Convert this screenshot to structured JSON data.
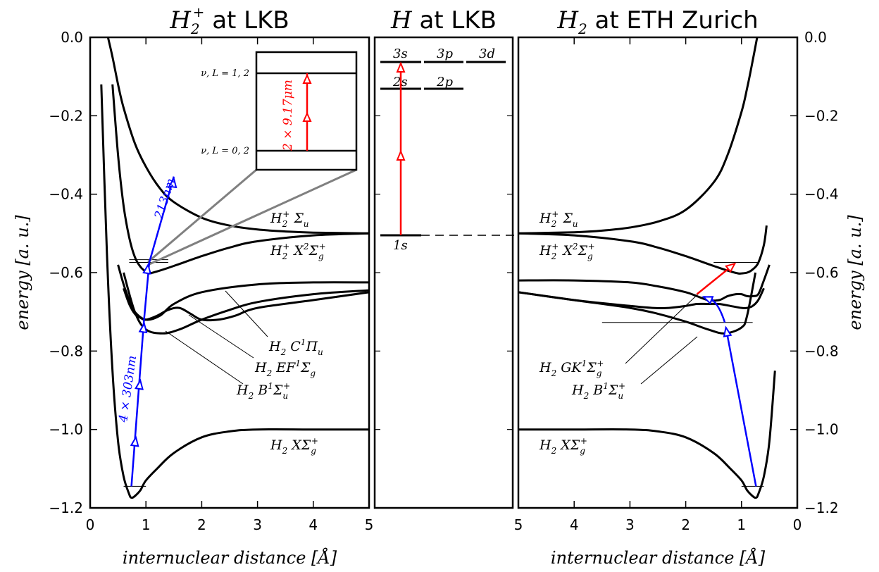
{
  "chart_data": [
    {
      "type": "line",
      "title": "H2+ at LKB",
      "xlabel": "internuclear distance [Å]",
      "ylabel": "energy [a. u.]",
      "xlim": [
        0,
        5
      ],
      "ylim": [
        -1.2,
        0.0
      ],
      "x_ticks": [
        "0",
        "1",
        "2",
        "3",
        "4",
        "5"
      ],
      "y_ticks": [
        "0.0",
        "−0.2",
        "−0.4",
        "−0.6",
        "−0.8",
        "−1.0",
        "−1.2"
      ],
      "series": [
        {
          "name": "H2+ Σu",
          "x": [
            0.32,
            0.4,
            0.5,
            0.6,
            0.8,
            1.0,
            1.25,
            1.5,
            2.0,
            2.5,
            3.0,
            3.5,
            4.0,
            5.0
          ],
          "y": [
            0.0,
            -0.05,
            -0.12,
            -0.18,
            -0.27,
            -0.33,
            -0.385,
            -0.42,
            -0.46,
            -0.48,
            -0.49,
            -0.495,
            -0.498,
            -0.5
          ]
        },
        {
          "name": "H2+ X2Σg+",
          "x": [
            0.4,
            0.5,
            0.6,
            0.7,
            0.8,
            0.9,
            1.0,
            1.06,
            1.2,
            1.5,
            2.0,
            2.5,
            3.0,
            4.0,
            5.0
          ],
          "y": [
            -0.12,
            -0.3,
            -0.43,
            -0.51,
            -0.56,
            -0.585,
            -0.598,
            -0.602,
            -0.597,
            -0.583,
            -0.558,
            -0.536,
            -0.52,
            -0.505,
            -0.5
          ]
        },
        {
          "name": "H2 C1Πu",
          "x": [
            0.5,
            0.6,
            0.7,
            0.8,
            1.0,
            1.25,
            1.5,
            2.0,
            3.0,
            4.0,
            5.0
          ],
          "y": [
            -0.58,
            -0.63,
            -0.67,
            -0.7,
            -0.72,
            -0.71,
            -0.68,
            -0.65,
            -0.63,
            -0.625,
            -0.625
          ]
        },
        {
          "name": "H2 EF1Σg",
          "x": [
            0.6,
            0.7,
            0.8,
            0.9,
            1.0,
            1.2,
            1.4,
            1.6,
            1.8,
            2.0,
            2.3,
            2.6,
            3.0,
            4.0,
            5.0
          ],
          "y": [
            -0.64,
            -0.68,
            -0.705,
            -0.715,
            -0.72,
            -0.71,
            -0.695,
            -0.69,
            -0.705,
            -0.72,
            -0.72,
            -0.71,
            -0.69,
            -0.67,
            -0.65
          ]
        },
        {
          "name": "H2 B1Σu+",
          "x": [
            0.6,
            0.8,
            1.0,
            1.3,
            1.6,
            2.0,
            2.5,
            3.0,
            4.0,
            5.0
          ],
          "y": [
            -0.6,
            -0.7,
            -0.745,
            -0.755,
            -0.745,
            -0.72,
            -0.695,
            -0.675,
            -0.655,
            -0.645
          ]
        },
        {
          "name": "H2 XΣg+",
          "x": [
            0.2,
            0.3,
            0.4,
            0.5,
            0.6,
            0.7,
            0.74,
            0.8,
            0.9,
            1.0,
            1.2,
            1.5,
            2.0,
            2.5,
            3.0,
            4.0,
            5.0
          ],
          "y": [
            -0.12,
            -0.55,
            -0.85,
            -1.03,
            -1.12,
            -1.165,
            -1.174,
            -1.17,
            -1.155,
            -1.13,
            -1.1,
            -1.06,
            -1.02,
            -1.005,
            -1.0,
            -1.0,
            -1.0
          ]
        }
      ],
      "vibrational_levels": [
        {
          "y": -1.145,
          "x": [
            0.6,
            1.0
          ]
        },
        {
          "y": -0.567,
          "x": [
            0.7,
            1.4
          ]
        },
        {
          "y": -0.574,
          "x": [
            0.7,
            1.4
          ]
        }
      ],
      "curve_labels": {
        "sigma_u": {
          "base": "H",
          "sub": "2",
          "sup": "+",
          "rest": " Σ",
          "rest_sub": "u"
        },
        "x2sigma": {
          "base": "H",
          "sub": "2",
          "sup": "+",
          "rest": " X",
          "rest_sup": "2",
          "rest2": "Σ",
          "rest2_sub": "g",
          "rest2_sup": "+"
        },
        "c1pi": {
          "base": "H",
          "sub": "2",
          "rest": " C",
          "rest_sup": "1",
          "rest2": "Π",
          "rest2_sub": "u"
        },
        "ef1sigma": {
          "base": "H",
          "sub": "2",
          "rest": " EF",
          "rest_sup": "1",
          "rest2": "Σ",
          "rest2_sub": "g"
        },
        "b1sigma": {
          "base": "H",
          "sub": "2",
          "rest": " B",
          "rest_sup": "1",
          "rest2": "Σ",
          "rest2_sub": "u",
          "rest2_sup": "+"
        },
        "xsigma": {
          "base": "H",
          "sub": "2",
          "rest": " X",
          "rest2": "Σ",
          "rest2_sub": "g",
          "rest2_sup": "+"
        }
      },
      "annotations": {
        "blue_label_upper": "213nm",
        "blue_label_lower": "4 × 303nm",
        "inset_level_upper": "ν, L = 1, 2",
        "inset_level_lower": "ν, L = 0, 2",
        "inset_red_label": "2 × 9.17μm"
      },
      "colors": {
        "curves": "#000000",
        "laser_uv": "#0000ff",
        "laser_ir": "#ff0000",
        "inset_connector": "#808080"
      }
    },
    {
      "type": "line",
      "title": "H at LKB",
      "xlim": [
        0,
        5
      ],
      "x_ticks": [
        "5"
      ],
      "levels": [
        {
          "label": "3s",
          "energy": -0.0556
        },
        {
          "label": "3p",
          "energy": -0.0556
        },
        {
          "label": "3d",
          "energy": -0.0556
        },
        {
          "label": "2s",
          "energy": -0.125
        },
        {
          "label": "2p",
          "energy": -0.125
        },
        {
          "label": "1s",
          "energy": -0.5
        }
      ],
      "transition": {
        "from": "1s",
        "to": "3s",
        "color": "#ff0000"
      }
    },
    {
      "type": "line",
      "title": "H2 at ETH Zurich",
      "xlabel": "internuclear distance [Å]",
      "ylabel": "energy [a. u.]",
      "xlim": [
        5,
        0
      ],
      "ylim": [
        -1.2,
        0.0
      ],
      "x_ticks": [
        "5",
        "4",
        "3",
        "2",
        "1",
        "0"
      ],
      "y_ticks": [
        "0.0",
        "−0.2",
        "−0.4",
        "−0.6",
        "−0.8",
        "−1.0",
        "−1.2"
      ],
      "series": [
        {
          "name": "H2+ Σu",
          "x": [
            0.72,
            0.8,
            0.9,
            1.0,
            1.25,
            1.5,
            2.0,
            2.5,
            3.0,
            3.5,
            4.0,
            5.0
          ],
          "y": [
            0.0,
            -0.06,
            -0.13,
            -0.19,
            -0.3,
            -0.37,
            -0.44,
            -0.47,
            -0.485,
            -0.493,
            -0.497,
            -0.5
          ]
        },
        {
          "name": "H2+ X2Σg+",
          "x": [
            0.55,
            0.6,
            0.7,
            0.8,
            0.9,
            1.0,
            1.06,
            1.2,
            1.5,
            2.0,
            2.5,
            3.0,
            4.0,
            5.0
          ],
          "y": [
            -0.48,
            -0.53,
            -0.575,
            -0.592,
            -0.6,
            -0.602,
            -0.602,
            -0.597,
            -0.583,
            -0.558,
            -0.536,
            -0.52,
            -0.505,
            -0.5
          ]
        },
        {
          "name": "H2 GK1Σg+",
          "x": [
            0.5,
            0.6,
            0.7,
            0.8,
            0.9,
            1.0,
            1.1,
            1.25,
            1.4,
            1.6,
            1.8,
            2.0,
            2.5,
            3.0,
            4.0,
            5.0
          ],
          "y": [
            -0.58,
            -0.62,
            -0.655,
            -0.66,
            -0.66,
            -0.655,
            -0.655,
            -0.66,
            -0.67,
            -0.67,
            -0.66,
            -0.65,
            -0.635,
            -0.625,
            -0.62,
            -0.62
          ]
        },
        {
          "name": "H2 EF1Σg",
          "x": [
            0.6,
            0.7,
            0.8,
            0.9,
            1.0,
            1.2,
            1.4,
            1.6,
            1.8,
            2.0,
            2.3,
            2.6,
            3.0,
            4.0,
            5.0
          ],
          "y": [
            -0.64,
            -0.67,
            -0.685,
            -0.69,
            -0.69,
            -0.685,
            -0.68,
            -0.68,
            -0.68,
            -0.685,
            -0.69,
            -0.69,
            -0.685,
            -0.67,
            -0.65
          ]
        },
        {
          "name": "H2 B1Σu+",
          "x": [
            0.75,
            0.9,
            1.0,
            1.3,
            1.6,
            2.0,
            2.5,
            3.0,
            4.0,
            5.0
          ],
          "y": [
            -0.6,
            -0.71,
            -0.74,
            -0.755,
            -0.745,
            -0.725,
            -0.705,
            -0.69,
            -0.67,
            -0.65
          ]
        },
        {
          "name": "H2 XΣg+",
          "x": [
            0.4,
            0.5,
            0.6,
            0.7,
            0.74,
            0.8,
            0.9,
            1.0,
            1.2,
            1.5,
            2.0,
            2.5,
            3.0,
            4.0,
            5.0
          ],
          "y": [
            -0.85,
            -1.03,
            -1.12,
            -1.165,
            -1.174,
            -1.17,
            -1.155,
            -1.13,
            -1.1,
            -1.06,
            -1.02,
            -1.005,
            -1.0,
            -1.0,
            -1.0
          ]
        }
      ],
      "vibrational_levels": [
        {
          "y": -1.145,
          "x": [
            0.6,
            1.0
          ]
        },
        {
          "y": -0.727,
          "x": [
            0.8,
            3.5
          ]
        },
        {
          "y": -0.574,
          "x": [
            0.7,
            1.5
          ]
        }
      ],
      "curve_labels": {
        "sigma_u": {
          "base": "H",
          "sub": "2",
          "sup": "+",
          "rest": " Σ",
          "rest_sub": "u"
        },
        "x2sigma": {
          "base": "H",
          "sub": "2",
          "sup": "+",
          "rest": " X",
          "rest_sup": "2",
          "rest2": "Σ",
          "rest2_sub": "g",
          "rest2_sup": "+"
        },
        "gk1sigma": {
          "base": "H",
          "sub": "2",
          "rest": " GK",
          "rest_sup": "1",
          "rest2": "Σ",
          "rest2_sub": "g",
          "rest2_sup": "+"
        },
        "b1sigma": {
          "base": "H",
          "sub": "2",
          "rest": " B",
          "rest_sup": "1",
          "rest2": "Σ",
          "rest2_sub": "u",
          "rest2_sup": "+"
        },
        "xsigma": {
          "base": "H",
          "sub": "2",
          "rest": " X",
          "rest2": "Σ",
          "rest2_sub": "g",
          "rest2_sup": "+"
        }
      },
      "colors": {
        "curves": "#000000",
        "laser_uv": "#0000ff",
        "laser_ir": "#ff0000"
      }
    }
  ]
}
